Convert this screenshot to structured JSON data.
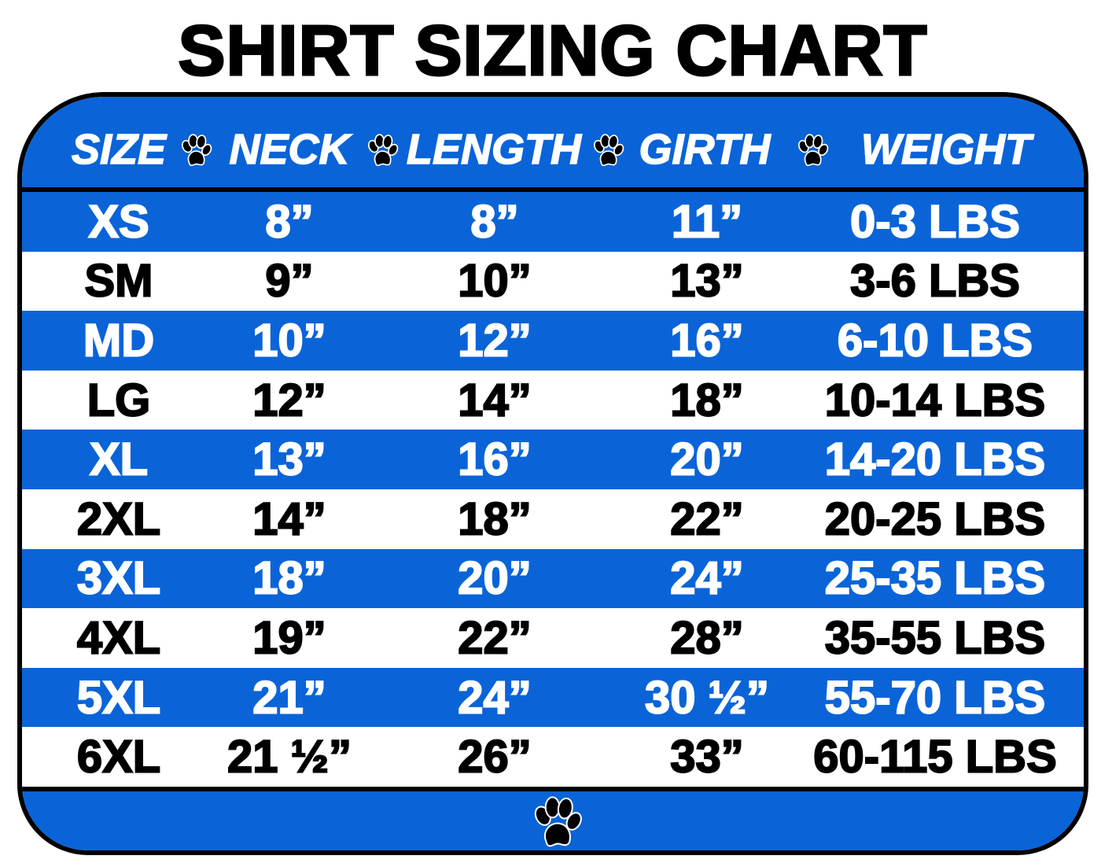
{
  "title": "SHIRT SIZING CHART",
  "colors": {
    "blue": "#0a64d8",
    "white": "#ffffff",
    "text_dark": "#000000"
  },
  "icons": {
    "separator": "paw-print-icon",
    "footer": "paw-print-icon"
  },
  "headers": [
    "SIZE",
    "NECK",
    "LENGTH",
    "GIRTH",
    "WEIGHT"
  ],
  "rows": [
    {
      "size": "XS",
      "neck": "8”",
      "length": "8”",
      "girth": "11”",
      "weight": "0-3 LBS"
    },
    {
      "size": "SM",
      "neck": "9”",
      "length": "10”",
      "girth": "13”",
      "weight": "3-6 LBS"
    },
    {
      "size": "MD",
      "neck": "10”",
      "length": "12”",
      "girth": "16”",
      "weight": "6-10 LBS"
    },
    {
      "size": "LG",
      "neck": "12”",
      "length": "14”",
      "girth": "18”",
      "weight": "10-14 LBS"
    },
    {
      "size": "XL",
      "neck": "13”",
      "length": "16”",
      "girth": "20”",
      "weight": "14-20 LBS"
    },
    {
      "size": "2XL",
      "neck": "14”",
      "length": "18”",
      "girth": "22”",
      "weight": "20-25 LBS"
    },
    {
      "size": "3XL",
      "neck": "18”",
      "length": "20”",
      "girth": "24”",
      "weight": "25-35 LBS"
    },
    {
      "size": "4XL",
      "neck": "19”",
      "length": "22”",
      "girth": "28”",
      "weight": "35-55 LBS"
    },
    {
      "size": "5XL",
      "neck": "21”",
      "length": "24”",
      "girth": "30 ½”",
      "weight": "55-70 LBS"
    },
    {
      "size": "6XL",
      "neck": "21 ½”",
      "length": "26”",
      "girth": "33”",
      "weight": "60-115 LBS"
    }
  ]
}
